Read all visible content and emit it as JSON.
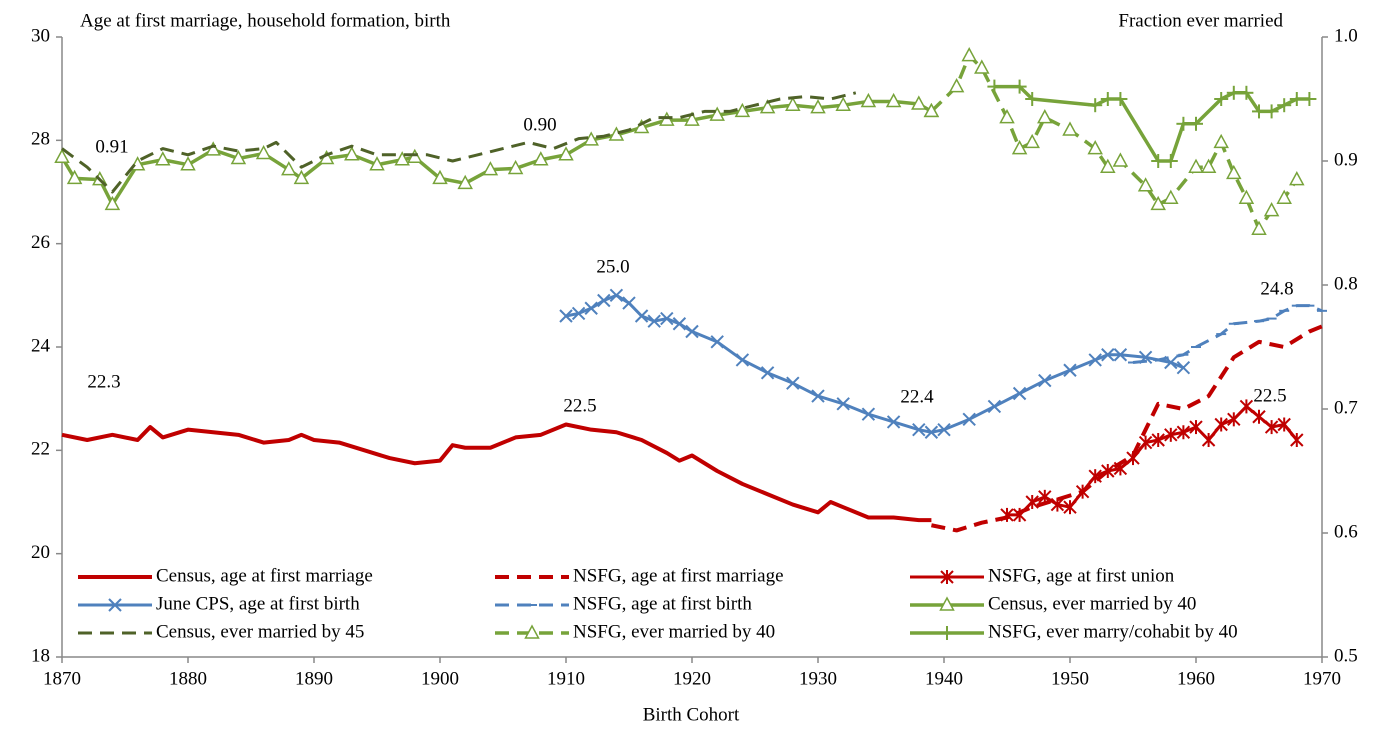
{
  "chart_data": {
    "type": "line",
    "y_label": "Age at first marriage, household formation, birth",
    "y2_label": "Fraction ever married",
    "x_label": "Birth Cohort",
    "xlim": [
      1870,
      1970
    ],
    "xticks": [
      1870,
      1880,
      1890,
      1900,
      1910,
      1920,
      1930,
      1940,
      1950,
      1960,
      1970
    ],
    "ylim": [
      18,
      30
    ],
    "yticks": [
      18,
      20,
      22,
      24,
      26,
      28,
      30
    ],
    "y2lim": [
      0.5,
      1
    ],
    "y2ticks": [
      0.5,
      0.6,
      0.7,
      0.8,
      0.9,
      {
        "value": 1,
        "label": "1.0"
      }
    ],
    "grid": false,
    "series": [
      {
        "name": "Census, age at first marriage",
        "color": "#c00000",
        "dash": false,
        "marker": "none",
        "width": 4,
        "x": [
          1870,
          1872,
          1874,
          1876,
          1877,
          1878,
          1880,
          1882,
          1884,
          1886,
          1888,
          1889,
          1890,
          1892,
          1894,
          1896,
          1898,
          1900,
          1901,
          1902,
          1904,
          1906,
          1908,
          1910,
          1912,
          1914,
          1916,
          1918,
          1919,
          1920,
          1922,
          1924,
          1926,
          1928,
          1930,
          1931,
          1932,
          1934,
          1936,
          1938,
          1939
        ],
        "values": [
          22.3,
          22.2,
          22.3,
          22.2,
          22.45,
          22.25,
          22.4,
          22.35,
          22.3,
          22.15,
          22.2,
          22.3,
          22.2,
          22.15,
          22.0,
          21.85,
          21.75,
          21.8,
          22.1,
          22.05,
          22.05,
          22.25,
          22.3,
          22.5,
          22.4,
          22.35,
          22.2,
          21.95,
          21.8,
          21.9,
          21.6,
          21.35,
          21.15,
          20.95,
          20.8,
          21.0,
          20.9,
          20.7,
          20.7,
          20.65,
          20.65
        ]
      },
      {
        "name": "NSFG, age at first marriage",
        "color": "#c00000",
        "dash": true,
        "marker": "none",
        "width": 4,
        "x": [
          1939,
          1941,
          1943,
          1945,
          1947,
          1949,
          1951,
          1953,
          1955,
          1957,
          1959,
          1961,
          1963,
          1965,
          1967,
          1969,
          1970
        ],
        "values": [
          20.55,
          20.45,
          20.6,
          20.7,
          20.9,
          21.05,
          21.2,
          21.6,
          21.9,
          22.9,
          22.8,
          23.05,
          23.8,
          24.1,
          24.0,
          24.3,
          24.4
        ]
      },
      {
        "name": "NSFG, age at first union",
        "color": "#c00000",
        "dash": false,
        "marker": "asterisk",
        "width": 3,
        "x": [
          1945,
          1946,
          1947,
          1948,
          1949,
          1950,
          1951,
          1952,
          1953,
          1954,
          1955,
          1956,
          1957,
          1958,
          1959,
          1960,
          1961,
          1962,
          1963,
          1964,
          1965,
          1966,
          1967,
          1968
        ],
        "values": [
          20.75,
          20.75,
          21.0,
          21.1,
          20.95,
          20.9,
          21.2,
          21.5,
          21.6,
          21.65,
          21.85,
          22.15,
          22.2,
          22.3,
          22.35,
          22.45,
          22.2,
          22.5,
          22.6,
          22.85,
          22.65,
          22.45,
          22.5,
          22.2
        ]
      },
      {
        "name": "June CPS, age at first birth",
        "color": "#4f81bd",
        "dash": false,
        "marker": "x",
        "width": 3,
        "x": [
          1910,
          1911,
          1912,
          1913,
          1914,
          1915,
          1916,
          1917,
          1918,
          1919,
          1920,
          1922,
          1924,
          1926,
          1928,
          1930,
          1932,
          1934,
          1936,
          1938,
          1939,
          1940,
          1942,
          1944,
          1946,
          1948,
          1950,
          1952,
          1953,
          1954,
          1956,
          1958,
          1959
        ],
        "values": [
          24.6,
          24.65,
          24.75,
          24.9,
          25.0,
          24.85,
          24.6,
          24.5,
          24.55,
          24.45,
          24.3,
          24.1,
          23.75,
          23.5,
          23.3,
          23.05,
          22.9,
          22.7,
          22.55,
          22.4,
          22.35,
          22.4,
          22.6,
          22.85,
          23.1,
          23.35,
          23.55,
          23.75,
          23.85,
          23.85,
          23.8,
          23.7,
          23.6
        ]
      },
      {
        "name": "NSFG, age at first birth",
        "color": "#4f81bd",
        "dash": true,
        "marker": "dash",
        "width": 3,
        "x": [
          1955,
          1957,
          1959,
          1960,
          1962,
          1963,
          1965,
          1966,
          1967,
          1968,
          1969,
          1970
        ],
        "values": [
          23.7,
          23.75,
          23.85,
          24.0,
          24.25,
          24.45,
          24.5,
          24.55,
          24.7,
          24.8,
          24.8,
          24.7
        ]
      },
      {
        "name": "Census, ever married by 40",
        "color": "#77a33a",
        "dash": false,
        "marker": "triangle",
        "width": 3.5,
        "axis": "y2",
        "x": [
          1870,
          1871,
          1873,
          1874,
          1876,
          1878,
          1880,
          1882,
          1884,
          1886,
          1888,
          1889,
          1891,
          1893,
          1895,
          1897,
          1898,
          1900,
          1902,
          1904,
          1906,
          1908,
          1910,
          1912,
          1914,
          1916,
          1918,
          1920,
          1922,
          1924,
          1926,
          1928,
          1930,
          1932,
          1934,
          1936,
          1938,
          1939
        ],
        "values": [
          0.903,
          0.886,
          0.885,
          0.865,
          0.897,
          0.901,
          0.897,
          0.909,
          0.902,
          0.906,
          0.893,
          0.886,
          0.902,
          0.905,
          0.897,
          0.901,
          0.903,
          0.886,
          0.882,
          0.893,
          0.894,
          0.901,
          0.905,
          0.917,
          0.921,
          0.927,
          0.933,
          0.933,
          0.937,
          0.94,
          0.943,
          0.945,
          0.943,
          0.945,
          0.948,
          0.948,
          0.946,
          0.94
        ]
      },
      {
        "name": "Census, ever married by 45",
        "color": "#4f6228",
        "dash": true,
        "marker": "none",
        "width": 3,
        "axis": "y2",
        "x": [
          1870,
          1872,
          1874,
          1876,
          1878,
          1880,
          1882,
          1884,
          1886,
          1887,
          1889,
          1891,
          1893,
          1895,
          1897,
          1899,
          1901,
          1903,
          1905,
          1907,
          1909,
          1911,
          1913,
          1915,
          1917,
          1919,
          1921,
          1923,
          1925,
          1927,
          1929,
          1931,
          1933
        ],
        "values": [
          0.91,
          0.895,
          0.875,
          0.9,
          0.91,
          0.905,
          0.912,
          0.908,
          0.91,
          0.915,
          0.895,
          0.905,
          0.912,
          0.905,
          0.905,
          0.905,
          0.9,
          0.905,
          0.91,
          0.915,
          0.91,
          0.918,
          0.92,
          0.925,
          0.935,
          0.935,
          0.94,
          0.94,
          0.945,
          0.95,
          0.952,
          0.95,
          0.955
        ]
      },
      {
        "name": "NSFG, ever married by 40",
        "color": "#77a33a",
        "dash": true,
        "marker": "triangle",
        "width": 3.5,
        "axis": "y2",
        "x": [
          1939,
          1941,
          1942,
          1943,
          1945,
          1946,
          1947,
          1948,
          1950,
          1952,
          1953,
          1954,
          1956,
          1957,
          1958,
          1960,
          1961,
          1962,
          1963,
          1964,
          1965,
          1966,
          1967,
          1968
        ],
        "values": [
          0.94,
          0.96,
          0.985,
          0.975,
          0.935,
          0.91,
          0.915,
          0.935,
          0.925,
          0.91,
          0.895,
          0.9,
          0.88,
          0.865,
          0.87,
          0.895,
          0.895,
          0.915,
          0.89,
          0.87,
          0.845,
          0.86,
          0.87,
          0.885
        ]
      },
      {
        "name": "NSFG, ever marry/cohabit by 40",
        "color": "#77a33a",
        "dash": false,
        "marker": "plus",
        "width": 3.5,
        "axis": "y2",
        "x": [
          1944,
          1946,
          1947,
          1952,
          1953,
          1954,
          1957,
          1958,
          1959,
          1960,
          1962,
          1963,
          1964,
          1965,
          1966,
          1967,
          1968,
          1969
        ],
        "values": [
          0.96,
          0.96,
          0.95,
          0.945,
          0.95,
          0.95,
          0.9,
          0.9,
          0.93,
          0.93,
          0.95,
          0.955,
          0.955,
          0.94,
          0.94,
          0.945,
          0.95,
          0.95
        ]
      }
    ],
    "annotations": [
      "0.91",
      "0.90",
      "25.0",
      "22.3",
      "22.5",
      "22.4",
      "24.8",
      "22.5"
    ]
  }
}
